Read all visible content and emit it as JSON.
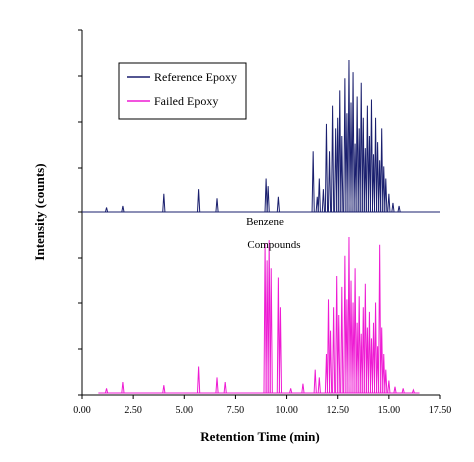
{
  "chart_data": {
    "type": "line",
    "xlabel": "Retention Time (min)",
    "ylabel": "Intensity (counts)",
    "xlim": [
      0,
      17.5
    ],
    "x_ticks": [
      "0.00",
      "2.50",
      "5.00",
      "7.50",
      "10.00",
      "12.50",
      "15.00",
      "17.50"
    ],
    "tick_values": [
      0,
      2.5,
      5,
      7.5,
      10,
      12.5,
      15,
      17.5
    ],
    "grid": false,
    "legend_position": "top-left",
    "annotations": [
      "Benzene",
      "Compounds"
    ],
    "series": [
      {
        "name": "Reference Epoxy",
        "color": "#1a1f6e",
        "peaks": [
          [
            1.2,
            0.03
          ],
          [
            2.0,
            0.04
          ],
          [
            4.0,
            0.12
          ],
          [
            5.7,
            0.15
          ],
          [
            6.6,
            0.09
          ],
          [
            9.0,
            0.22
          ],
          [
            9.1,
            0.17
          ],
          [
            9.6,
            0.1
          ],
          [
            11.3,
            0.4
          ],
          [
            11.5,
            0.1
          ],
          [
            11.6,
            0.22
          ],
          [
            11.8,
            0.15
          ],
          [
            11.95,
            0.58
          ],
          [
            12.1,
            0.4
          ],
          [
            12.25,
            0.7
          ],
          [
            12.4,
            0.55
          ],
          [
            12.5,
            0.62
          ],
          [
            12.6,
            0.8
          ],
          [
            12.7,
            0.5
          ],
          [
            12.85,
            0.88
          ],
          [
            12.95,
            0.65
          ],
          [
            13.05,
            1.0
          ],
          [
            13.15,
            0.72
          ],
          [
            13.25,
            0.92
          ],
          [
            13.35,
            0.45
          ],
          [
            13.45,
            0.76
          ],
          [
            13.55,
            0.55
          ],
          [
            13.65,
            0.85
          ],
          [
            13.75,
            0.62
          ],
          [
            13.85,
            0.42
          ],
          [
            13.95,
            0.7
          ],
          [
            14.05,
            0.5
          ],
          [
            14.15,
            0.74
          ],
          [
            14.25,
            0.38
          ],
          [
            14.35,
            0.62
          ],
          [
            14.45,
            0.46
          ],
          [
            14.55,
            0.34
          ],
          [
            14.65,
            0.55
          ],
          [
            14.75,
            0.3
          ],
          [
            14.85,
            0.22
          ],
          [
            15.0,
            0.12
          ],
          [
            15.2,
            0.06
          ],
          [
            15.5,
            0.04
          ]
        ]
      },
      {
        "name": "Failed Epoxy",
        "color": "#ee1bd3",
        "peaks": [
          [
            1.2,
            0.03
          ],
          [
            2.0,
            0.07
          ],
          [
            4.0,
            0.05
          ],
          [
            5.7,
            0.17
          ],
          [
            6.6,
            0.1
          ],
          [
            7.0,
            0.07
          ],
          [
            8.95,
            0.96
          ],
          [
            9.05,
            0.85
          ],
          [
            9.15,
            0.98
          ],
          [
            9.25,
            0.8
          ],
          [
            9.6,
            0.74
          ],
          [
            9.7,
            0.55
          ],
          [
            10.2,
            0.03
          ],
          [
            10.8,
            0.06
          ],
          [
            11.4,
            0.15
          ],
          [
            11.6,
            0.1
          ],
          [
            11.95,
            0.25
          ],
          [
            12.05,
            0.6
          ],
          [
            12.15,
            0.4
          ],
          [
            12.3,
            0.55
          ],
          [
            12.45,
            0.75
          ],
          [
            12.55,
            0.5
          ],
          [
            12.7,
            0.68
          ],
          [
            12.85,
            0.88
          ],
          [
            12.95,
            0.6
          ],
          [
            13.05,
            1.0
          ],
          [
            13.15,
            0.72
          ],
          [
            13.25,
            0.58
          ],
          [
            13.35,
            0.8
          ],
          [
            13.45,
            0.45
          ],
          [
            13.55,
            0.62
          ],
          [
            13.65,
            0.38
          ],
          [
            13.75,
            0.55
          ],
          [
            13.85,
            0.7
          ],
          [
            13.95,
            0.42
          ],
          [
            14.05,
            0.52
          ],
          [
            14.15,
            0.35
          ],
          [
            14.25,
            0.45
          ],
          [
            14.35,
            0.58
          ],
          [
            14.45,
            0.3
          ],
          [
            14.55,
            0.95
          ],
          [
            14.65,
            0.42
          ],
          [
            14.75,
            0.25
          ],
          [
            14.85,
            0.15
          ],
          [
            15.0,
            0.08
          ],
          [
            15.3,
            0.04
          ],
          [
            15.7,
            0.03
          ],
          [
            16.2,
            0.02
          ]
        ]
      }
    ]
  }
}
